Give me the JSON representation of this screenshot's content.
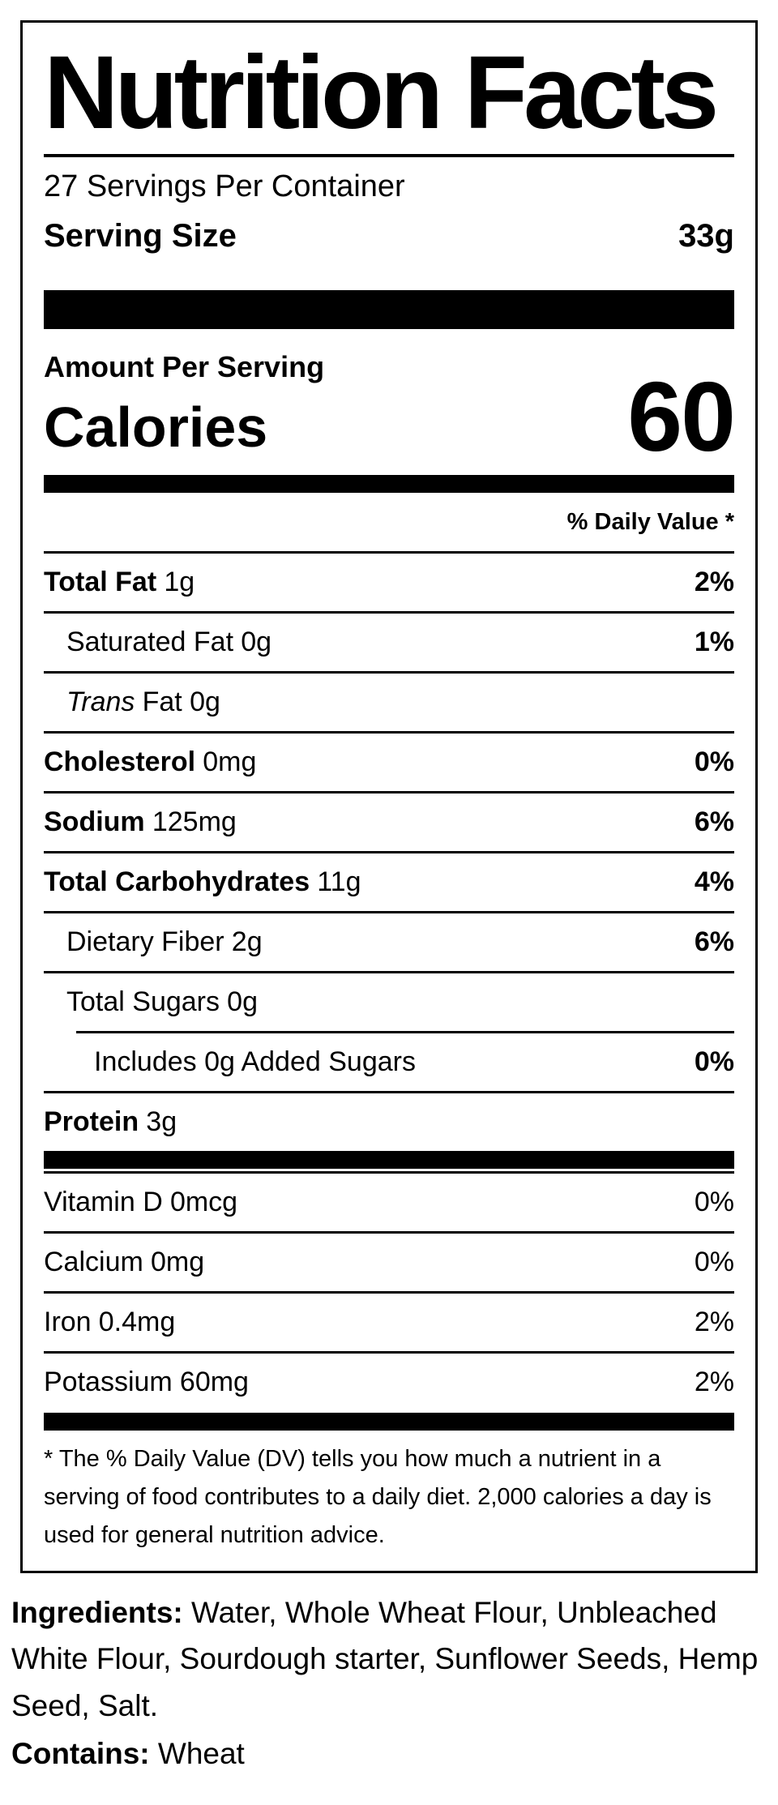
{
  "label": {
    "title": "Nutrition Facts",
    "servings_per_container": "27 Servings Per Container",
    "serving_size": {
      "label": "Serving Size",
      "value": "33g"
    },
    "amount_per_serving": "Amount Per Serving",
    "calories": {
      "label": "Calories",
      "value": "60"
    },
    "daily_value_header": "% Daily Value *",
    "nutrients": [
      {
        "name": "Total Fat",
        "amount": "1g",
        "dv": "2%"
      },
      {
        "name": "Saturated Fat",
        "amount": "0g",
        "dv": "1%"
      },
      {
        "name": "Trans",
        "amount": "Fat 0g",
        "dv": ""
      },
      {
        "name": "Cholesterol",
        "amount": "0mg",
        "dv": "0%"
      },
      {
        "name": "Sodium",
        "amount": "125mg",
        "dv": "6%"
      },
      {
        "name": "Total Carbohydrates",
        "amount": "11g",
        "dv": "4%"
      },
      {
        "name": "Dietary Fiber",
        "amount": "2g",
        "dv": "6%"
      },
      {
        "name": "Total Sugars",
        "amount": "0g",
        "dv": ""
      },
      {
        "name": "Includes 0g Added Sugars",
        "amount": "",
        "dv": "0%"
      },
      {
        "name": "Protein",
        "amount": "3g",
        "dv": ""
      }
    ],
    "micronutrients": [
      {
        "name": "Vitamin D",
        "amount": "0mcg",
        "dv": "0%"
      },
      {
        "name": "Calcium",
        "amount": "0mg",
        "dv": "0%"
      },
      {
        "name": "Iron",
        "amount": "0.4mg",
        "dv": "2%"
      },
      {
        "name": "Potassium",
        "amount": "60mg",
        "dv": "2%"
      }
    ],
    "footnote": "* The % Daily Value (DV) tells you how much a nutrient in a serving of food contributes to a daily diet. 2,000 calories a day is used for general nutrition advice."
  },
  "ingredients": {
    "label": "Ingredients:",
    "text": "Water, Whole Wheat Flour, Unbleached White Flour, Sourdough starter, Sunflower Seeds, Hemp Seed, Salt."
  },
  "contains": {
    "label": "Contains:",
    "text": "Wheat"
  },
  "colors": {
    "text": "#000000",
    "background": "#ffffff",
    "bar": "#000000"
  }
}
